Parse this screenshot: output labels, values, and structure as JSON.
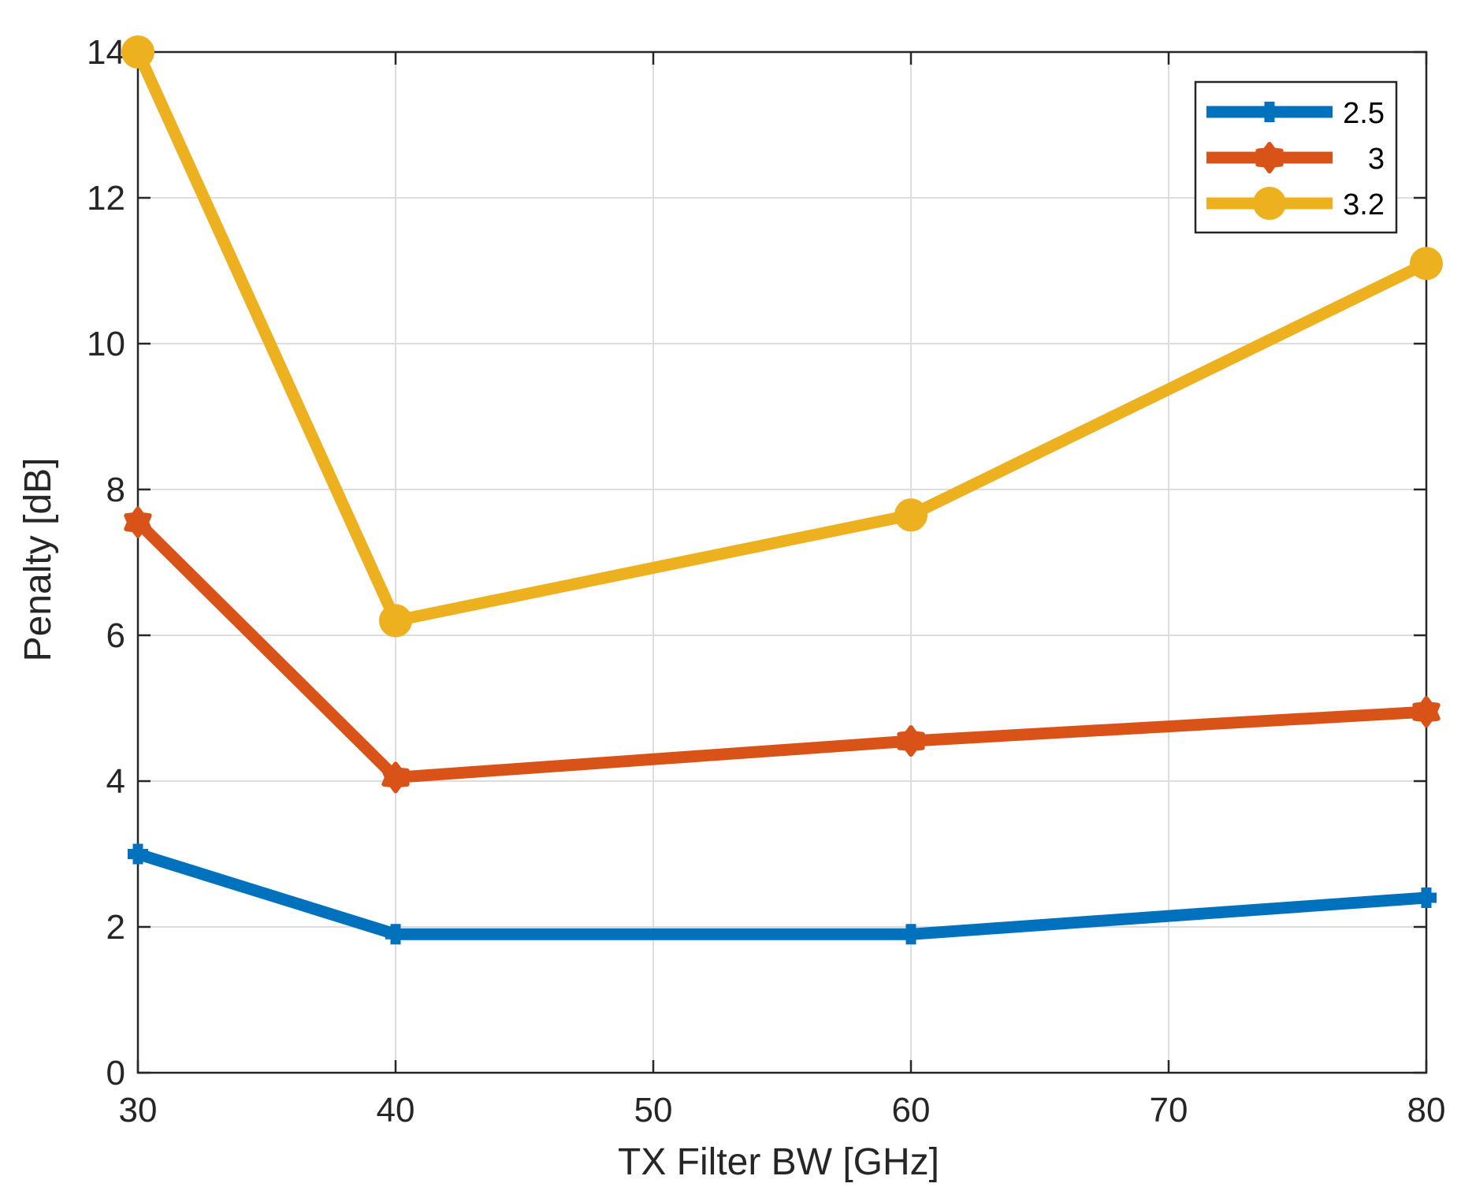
{
  "chart_data": {
    "type": "line",
    "title": "",
    "xlabel": "TX Filter BW [GHz]",
    "ylabel": "Penalty [dB]",
    "xlim": [
      30,
      80
    ],
    "ylim": [
      0,
      14
    ],
    "xticks": [
      30,
      40,
      50,
      60,
      70,
      80
    ],
    "yticks": [
      0,
      2,
      4,
      6,
      8,
      10,
      12,
      14
    ],
    "grid": true,
    "legend_position": "top-right",
    "series": [
      {
        "name": "2.5",
        "color": "#0072BD",
        "marker": "plus",
        "x": [
          30,
          40,
          60,
          80
        ],
        "values": [
          3.0,
          1.9,
          1.9,
          2.4
        ]
      },
      {
        "name": "3",
        "color": "#D95319",
        "marker": "hexagram",
        "x": [
          30,
          40,
          60,
          80
        ],
        "values": [
          7.55,
          4.05,
          4.55,
          4.95
        ]
      },
      {
        "name": "3.2",
        "color": "#EDB120",
        "marker": "circle",
        "x": [
          30,
          40,
          60,
          80
        ],
        "values": [
          14.0,
          6.2,
          7.65,
          11.1
        ]
      }
    ]
  }
}
